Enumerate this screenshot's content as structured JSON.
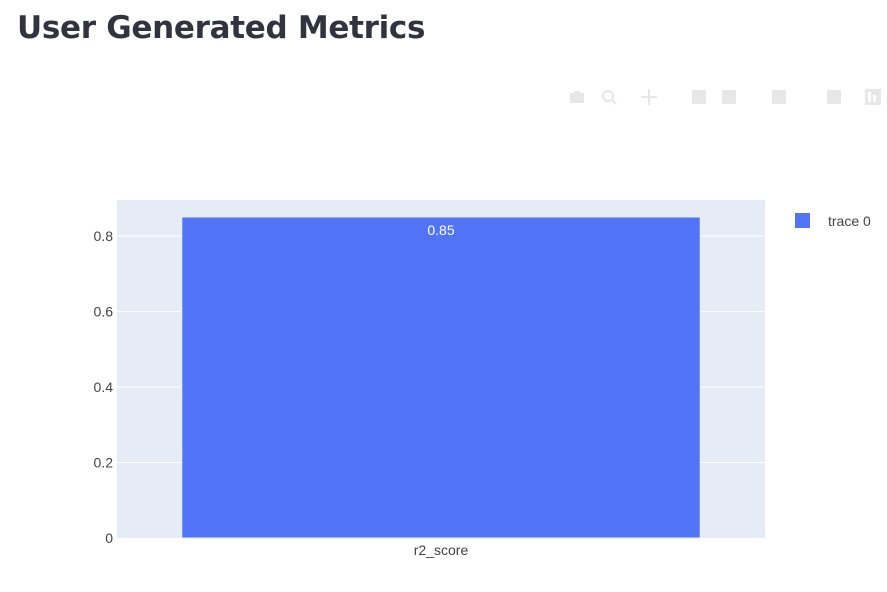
{
  "header": {
    "title": "User Generated Metrics"
  },
  "modebar": {
    "buttons": [
      {
        "icon": "camera-icon"
      },
      {
        "icon": "zoom-icon"
      },
      {
        "icon": "pan-icon"
      },
      {
        "icon": "zoom-in-icon"
      },
      {
        "icon": "zoom-out-icon"
      },
      {
        "icon": "autoscale-icon"
      },
      {
        "icon": "reset-axes-icon"
      },
      {
        "icon": "plotly-logo-icon"
      }
    ]
  },
  "chart_data": {
    "type": "bar",
    "categories": [
      "r2_score"
    ],
    "series": [
      {
        "name": "trace 0",
        "values": [
          0.85
        ],
        "color": "#636efa"
      }
    ],
    "data_labels": [
      "0.85"
    ],
    "title": "",
    "xlabel": "",
    "ylabel": "",
    "ylim": [
      0,
      0.895
    ],
    "yticks": [
      0,
      0.2,
      0.4,
      0.6,
      0.8
    ],
    "ytick_labels": [
      "0",
      "0.2",
      "0.4",
      "0.6",
      "0.8"
    ],
    "grid": true,
    "legend_position": "top-right",
    "plot_background": "#e5ecf6",
    "bar_color": "#5173f5"
  }
}
